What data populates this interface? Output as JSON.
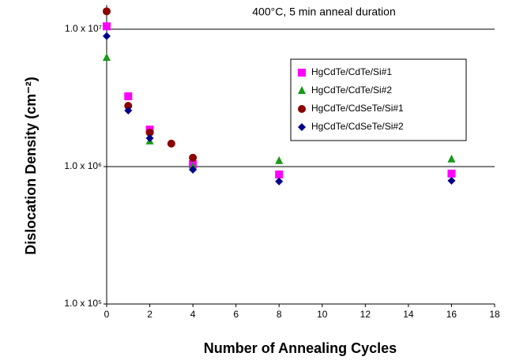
{
  "chart_data": {
    "type": "scatter",
    "title": "400°C, 5 min anneal duration",
    "x_label": "Number of Annealing Cycles",
    "y_label": "Dislocation Density (cm⁻²)",
    "log_y": true,
    "grid": true,
    "legend_position": "upper right",
    "xlim": [
      0,
      18
    ],
    "xticks": [
      0,
      2,
      4,
      6,
      8,
      10,
      12,
      14,
      16,
      18
    ],
    "ylim": [
      100000,
      15000000
    ],
    "yticks": [
      {
        "value": 100000,
        "label": "1.0 x 10⁵"
      },
      {
        "value": 1000000,
        "label": "1.0 x 10⁶"
      },
      {
        "value": 10000000,
        "label": "1.0 x 10⁷"
      }
    ],
    "series": [
      {
        "name": "HgCdTe/CdTe/Si#1",
        "color": "#ff00ff",
        "marker": "square",
        "x": [
          0,
          1,
          2,
          4,
          8,
          16
        ],
        "values": [
          10500000,
          3250000,
          1860000,
          1040000,
          877000,
          890000
        ]
      },
      {
        "name": "HgCdTe/CdTe/Si#2",
        "color": "#1a9a1a",
        "marker": "triangle",
        "x": [
          0,
          2,
          4,
          8,
          16
        ],
        "values": [
          6200000,
          1530000,
          1000000,
          1100000,
          1130000
        ]
      },
      {
        "name": "HgCdTe/CdSeTe/Si#1",
        "color": "#8b0000",
        "marker": "circle",
        "x": [
          0,
          1,
          2,
          3,
          4
        ],
        "values": [
          13500000,
          2770000,
          1770000,
          1470000,
          1160000
        ]
      },
      {
        "name": "HgCdTe/CdSeTe/Si#2",
        "color": "#00008b",
        "marker": "diamond",
        "x": [
          0,
          1,
          2,
          4,
          8,
          16
        ],
        "values": [
          8900000,
          2560000,
          1610000,
          950000,
          780000,
          790000
        ]
      }
    ]
  }
}
